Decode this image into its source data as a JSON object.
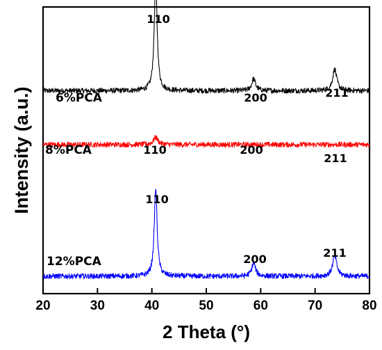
{
  "chart_data": {
    "type": "line",
    "xlabel": "2 Theta (°)",
    "ylabel": "Intensity (a.u.)",
    "xlim": [
      20,
      80
    ],
    "xticks": [
      20,
      30,
      40,
      50,
      60,
      70,
      80
    ],
    "y_ticks_shown": false,
    "grid": false,
    "legend": "none",
    "series": [
      {
        "name": "6%PCA",
        "color": "#000000",
        "baseline": 1.55,
        "noise": 0.022,
        "peaks": [
          {
            "label": "110",
            "x": 40.7,
            "height": 0.93,
            "width": 0.32
          },
          {
            "label": "200",
            "x": 58.7,
            "height": 0.1,
            "width": 0.42
          },
          {
            "label": "211",
            "x": 73.6,
            "height": 0.18,
            "width": 0.45
          }
        ]
      },
      {
        "name": "8%PCA",
        "color": "#ff0000",
        "baseline": 1.1,
        "noise": 0.022,
        "peaks": [
          {
            "label": "110",
            "x": 40.7,
            "height": 0.06,
            "width": 0.5
          },
          {
            "label": "200",
            "x": 58.7,
            "height": 0.0,
            "width": 0.5
          },
          {
            "label": "211",
            "x": 73.6,
            "height": 0.0,
            "width": 0.5
          }
        ]
      },
      {
        "name": "12%PCA",
        "color": "#0000ff",
        "baseline": 0.0,
        "noise": 0.022,
        "peaks": [
          {
            "label": "110",
            "x": 40.7,
            "height": 0.73,
            "width": 0.32
          },
          {
            "label": "200",
            "x": 58.7,
            "height": 0.11,
            "width": 0.42
          },
          {
            "label": "211",
            "x": 73.6,
            "height": 0.17,
            "width": 0.45
          }
        ]
      }
    ]
  }
}
